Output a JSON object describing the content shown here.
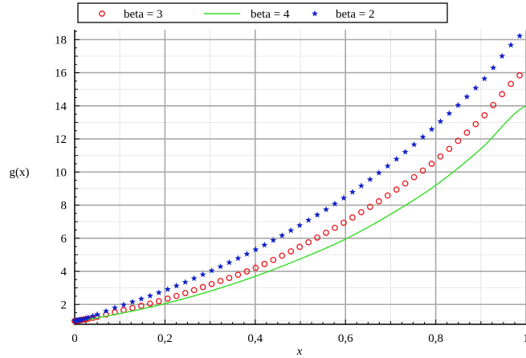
{
  "chart_data": {
    "type": "line",
    "xlabel": "x",
    "ylabel": "g(x)",
    "xlim": [
      0,
      1
    ],
    "ylim": [
      0.8,
      18.6
    ],
    "x_ticks": [
      {
        "value": 0,
        "label": "0"
      },
      {
        "value": 0.2,
        "label": "0,2"
      },
      {
        "value": 0.4,
        "label": "0,4"
      },
      {
        "value": 0.6,
        "label": "0,6"
      },
      {
        "value": 0.8,
        "label": "0,8"
      },
      {
        "value": 1,
        "label": "1"
      }
    ],
    "y_ticks": [
      {
        "value": 2,
        "label": "2"
      },
      {
        "value": 4,
        "label": "4"
      },
      {
        "value": 6,
        "label": "6"
      },
      {
        "value": 8,
        "label": "8"
      },
      {
        "value": 10,
        "label": "10"
      },
      {
        "value": 12,
        "label": "12"
      },
      {
        "value": 14,
        "label": "14"
      },
      {
        "value": 16,
        "label": "16"
      },
      {
        "value": 18,
        "label": "18"
      }
    ],
    "grid": true,
    "legend_position": "top",
    "x": [
      0,
      0.1,
      0.2,
      0.3,
      0.4,
      0.5,
      0.6,
      0.7,
      0.8,
      0.9,
      1.0
    ],
    "series": [
      {
        "name": "beta = 3",
        "marker": "circle",
        "color": "#e8141a",
        "values": [
          1.0,
          1.6,
          2.3,
          3.2,
          4.2,
          5.5,
          7.0,
          8.7,
          10.7,
          13.2,
          16.1
        ]
      },
      {
        "name": "beta = 4",
        "marker": "line",
        "color": "#33dd22",
        "values": [
          1.0,
          1.45,
          2.05,
          2.8,
          3.7,
          4.75,
          5.95,
          7.45,
          9.2,
          11.4,
          14.0
        ]
      },
      {
        "name": "beta = 2",
        "marker": "star",
        "color": "#1020c8",
        "values": [
          1.0,
          1.9,
          2.85,
          4.0,
          5.3,
          6.8,
          8.5,
          10.5,
          12.8,
          15.4,
          18.5
        ]
      }
    ]
  }
}
